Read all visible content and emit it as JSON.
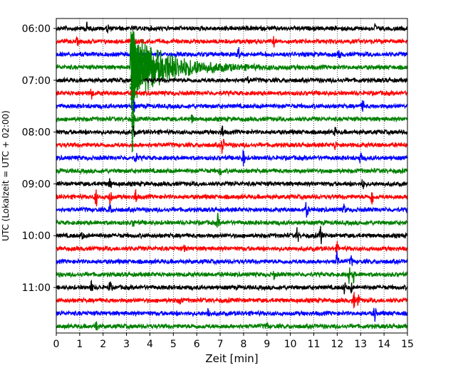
{
  "chart_data": {
    "type": "line",
    "xlabel": "Zeit  [min]",
    "ylabel": "UTC (Lokalzeit = UTC + 02:00)",
    "xlim": [
      0,
      15
    ],
    "x_ticks": [
      0,
      1,
      2,
      3,
      4,
      5,
      6,
      7,
      8,
      9,
      10,
      11,
      12,
      13,
      14,
      15
    ],
    "x_tick_labels": [
      "0",
      "1",
      "2",
      "3",
      "4",
      "5",
      "6",
      "7",
      "8",
      "9",
      "10",
      "11",
      "12",
      "13",
      "14",
      "15"
    ],
    "y_tick_labels": [
      "06:00",
      "07:00",
      "08:00",
      "09:00",
      "10:00",
      "11:00"
    ],
    "y_tick_rows": [
      0,
      4,
      8,
      12,
      16,
      20
    ],
    "row_interval_min": 15,
    "start_time": "06:00",
    "grid": "vertical dotted",
    "colors": [
      "#000000",
      "#ff0000",
      "#0000ff",
      "#008000"
    ],
    "series": [
      {
        "start": "06:00",
        "color": "#000000",
        "spikes": [
          {
            "x": 1.3,
            "a": 0.8
          },
          {
            "x": 2.2,
            "a": 0.6
          },
          {
            "x": 13.6,
            "a": 0.7
          }
        ]
      },
      {
        "start": "06:15",
        "color": "#ff0000",
        "spikes": [
          {
            "x": 0.9,
            "a": 0.5
          },
          {
            "x": 9.3,
            "a": 0.6
          }
        ]
      },
      {
        "start": "06:30",
        "color": "#0000ff",
        "spikes": [
          {
            "x": 7.8,
            "a": 1.2
          },
          {
            "x": 12.1,
            "a": 0.6
          }
        ]
      },
      {
        "start": "06:45",
        "color": "#008000",
        "spikes": [
          {
            "x": 3.2,
            "a": 6.0,
            "quake": true
          }
        ]
      },
      {
        "start": "07:00",
        "color": "#000000",
        "spikes": [
          {
            "x": 3.3,
            "a": 2.5
          },
          {
            "x": 8.2,
            "a": 0.5
          }
        ]
      },
      {
        "start": "07:15",
        "color": "#ff0000",
        "spikes": [
          {
            "x": 1.5,
            "a": 0.8
          },
          {
            "x": 3.3,
            "a": 2.0
          }
        ]
      },
      {
        "start": "07:30",
        "color": "#0000ff",
        "spikes": [
          {
            "x": 3.3,
            "a": 1.5
          },
          {
            "x": 13.1,
            "a": 0.8
          }
        ]
      },
      {
        "start": "07:45",
        "color": "#008000",
        "spikes": [
          {
            "x": 3.3,
            "a": 1.2
          },
          {
            "x": 5.8,
            "a": 0.6
          }
        ]
      },
      {
        "start": "08:00",
        "color": "#000000",
        "spikes": [
          {
            "x": 3.3,
            "a": 1.0
          },
          {
            "x": 7.1,
            "a": 1.0
          },
          {
            "x": 11.9,
            "a": 0.6
          }
        ]
      },
      {
        "start": "08:15",
        "color": "#ff0000",
        "spikes": [
          {
            "x": 7.1,
            "a": 1.8
          },
          {
            "x": 11.9,
            "a": 0.7
          }
        ]
      },
      {
        "start": "08:30",
        "color": "#0000ff",
        "spikes": [
          {
            "x": 3.4,
            "a": 0.8
          },
          {
            "x": 8.0,
            "a": 1.3
          },
          {
            "x": 13.0,
            "a": 0.8
          }
        ]
      },
      {
        "start": "08:45",
        "color": "#008000",
        "spikes": [
          {
            "x": 7.0,
            "a": 0.6
          }
        ]
      },
      {
        "start": "09:00",
        "color": "#000000",
        "spikes": [
          {
            "x": 2.3,
            "a": 0.9
          },
          {
            "x": 13.1,
            "a": 0.7
          }
        ]
      },
      {
        "start": "09:15",
        "color": "#ff0000",
        "spikes": [
          {
            "x": 1.7,
            "a": 1.4
          },
          {
            "x": 2.3,
            "a": 1.8
          },
          {
            "x": 3.4,
            "a": 1.2
          },
          {
            "x": 13.5,
            "a": 1.4
          }
        ]
      },
      {
        "start": "09:30",
        "color": "#0000ff",
        "spikes": [
          {
            "x": 2.3,
            "a": 0.8
          },
          {
            "x": 10.7,
            "a": 1.6
          },
          {
            "x": 12.3,
            "a": 0.7
          }
        ]
      },
      {
        "start": "09:45",
        "color": "#008000",
        "spikes": [
          {
            "x": 3.3,
            "a": 0.6
          },
          {
            "x": 6.9,
            "a": 1.2
          }
        ]
      },
      {
        "start": "10:00",
        "color": "#000000",
        "spikes": [
          {
            "x": 1.1,
            "a": 0.6
          },
          {
            "x": 10.3,
            "a": 1.2
          },
          {
            "x": 11.3,
            "a": 1.6
          }
        ]
      },
      {
        "start": "10:15",
        "color": "#ff0000",
        "spikes": [
          {
            "x": 5.5,
            "a": 0.6
          },
          {
            "x": 12.0,
            "a": 0.8
          }
        ]
      },
      {
        "start": "10:30",
        "color": "#0000ff",
        "spikes": [
          {
            "x": 12.0,
            "a": 1.4
          },
          {
            "x": 12.6,
            "a": 0.8
          }
        ]
      },
      {
        "start": "10:45",
        "color": "#008000",
        "spikes": [
          {
            "x": 9.3,
            "a": 0.6
          },
          {
            "x": 12.5,
            "a": 1.2
          },
          {
            "x": 12.7,
            "a": 1.0
          }
        ]
      },
      {
        "start": "11:00",
        "color": "#000000",
        "spikes": [
          {
            "x": 1.5,
            "a": 0.8
          },
          {
            "x": 2.3,
            "a": 1.0
          },
          {
            "x": 12.3,
            "a": 1.0
          },
          {
            "x": 12.6,
            "a": 0.7
          }
        ]
      },
      {
        "start": "11:15",
        "color": "#ff0000",
        "spikes": [
          {
            "x": 5.3,
            "a": 0.7
          },
          {
            "x": 12.7,
            "a": 1.3
          },
          {
            "x": 12.9,
            "a": 1.0
          }
        ]
      },
      {
        "start": "11:30",
        "color": "#0000ff",
        "spikes": [
          {
            "x": 6.5,
            "a": 0.9
          },
          {
            "x": 13.6,
            "a": 1.2
          }
        ]
      },
      {
        "start": "11:45",
        "color": "#008000",
        "spikes": [
          {
            "x": 1.7,
            "a": 1.0
          },
          {
            "x": 9.0,
            "a": 0.5
          }
        ]
      }
    ]
  }
}
